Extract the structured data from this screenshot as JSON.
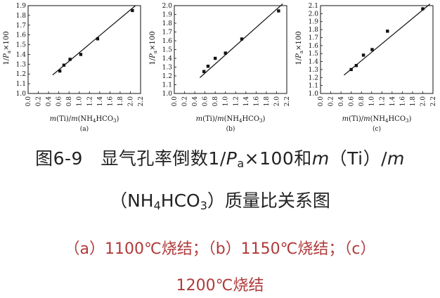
{
  "chart_data": [
    {
      "type": "scatter",
      "subplot_label": "(a)",
      "ylabel": "1/P_a×100",
      "xlabel": "m(Ti)/m(NH4HCO3)",
      "xlim": [
        0.0,
        2.2
      ],
      "ylim": [
        1.0,
        1.9
      ],
      "xticks": [
        "0.0",
        "0.2",
        "0.4",
        "0.6",
        "0.8",
        "1.0",
        "1.2",
        "1.4",
        "1.6",
        "1.8",
        "2.0",
        "2.2"
      ],
      "yticks": [
        "1.0",
        "1.1",
        "1.2",
        "1.3",
        "1.4",
        "1.5",
        "1.6",
        "1.7",
        "1.8",
        "1.9"
      ],
      "points": [
        [
          0.62,
          1.23
        ],
        [
          0.7,
          1.29
        ],
        [
          0.82,
          1.35
        ],
        [
          1.03,
          1.4
        ],
        [
          1.36,
          1.56
        ],
        [
          2.04,
          1.85
        ]
      ],
      "fit_line": [
        [
          0.48,
          1.19
        ],
        [
          2.1,
          1.9
        ]
      ]
    },
    {
      "type": "scatter",
      "subplot_label": "(b)",
      "ylabel": "1/P_a×100",
      "xlabel": "m(Ti)/m(NH4HCO3)",
      "xlim": [
        0.0,
        2.2
      ],
      "ylim": [
        1.0,
        2.0
      ],
      "xticks": [
        "0.0",
        "0.2",
        "0.4",
        "0.6",
        "0.8",
        "1.0",
        "1.2",
        "1.4",
        "1.6",
        "1.8",
        "2.0",
        "2.2"
      ],
      "yticks": [
        "1.0",
        "1.1",
        "1.2",
        "1.3",
        "1.4",
        "1.5",
        "1.6",
        "1.7",
        "1.8",
        "1.9",
        "2.0"
      ],
      "points": [
        [
          0.58,
          1.25
        ],
        [
          0.66,
          1.31
        ],
        [
          0.8,
          1.4
        ],
        [
          1.0,
          1.46
        ],
        [
          1.32,
          1.62
        ],
        [
          2.04,
          1.94
        ]
      ],
      "fit_line": [
        [
          0.5,
          1.18
        ],
        [
          2.12,
          2.02
        ]
      ]
    },
    {
      "type": "scatter",
      "subplot_label": "(c)",
      "ylabel": "1/P_a×100",
      "xlabel": "m(Ti)/m(NH4HCO3)",
      "xlim": [
        0.0,
        2.2
      ],
      "ylim": [
        1.0,
        2.1
      ],
      "xticks": [
        "0.0",
        "0.2",
        "0.4",
        "0.6",
        "0.8",
        "1.0",
        "1.2",
        "1.4",
        "1.6",
        "1.8",
        "2.0",
        "2.2"
      ],
      "yticks": [
        "1.0",
        "1.1",
        "1.2",
        "1.3",
        "1.4",
        "1.5",
        "1.6",
        "1.7",
        "1.8",
        "1.9",
        "2.0",
        "2.1"
      ],
      "points": [
        [
          0.6,
          1.3
        ],
        [
          0.7,
          1.35
        ],
        [
          0.84,
          1.48
        ],
        [
          1.01,
          1.55
        ],
        [
          1.31,
          1.78
        ],
        [
          2.0,
          2.06
        ]
      ],
      "fit_line": [
        [
          0.46,
          1.23
        ],
        [
          2.14,
          2.12
        ]
      ]
    }
  ],
  "caption": {
    "line1_prefix": "图6-9　显气孔率倒数1/",
    "line1_P": "P",
    "line1_sub_a": "a",
    "line1_mid": "×100和",
    "line1_m1": "m",
    "line1_ti": "（Ti）/",
    "line1_m2": "m",
    "line2_open": "（NH",
    "line2_sub4": "4",
    "line2_hco": "HCO",
    "line2_sub3": "3",
    "line2_rest": "）质量比关系图",
    "line3": "（a）1100℃烧结；（b）1150℃烧结；（c）",
    "line4": "1200℃烧结"
  }
}
